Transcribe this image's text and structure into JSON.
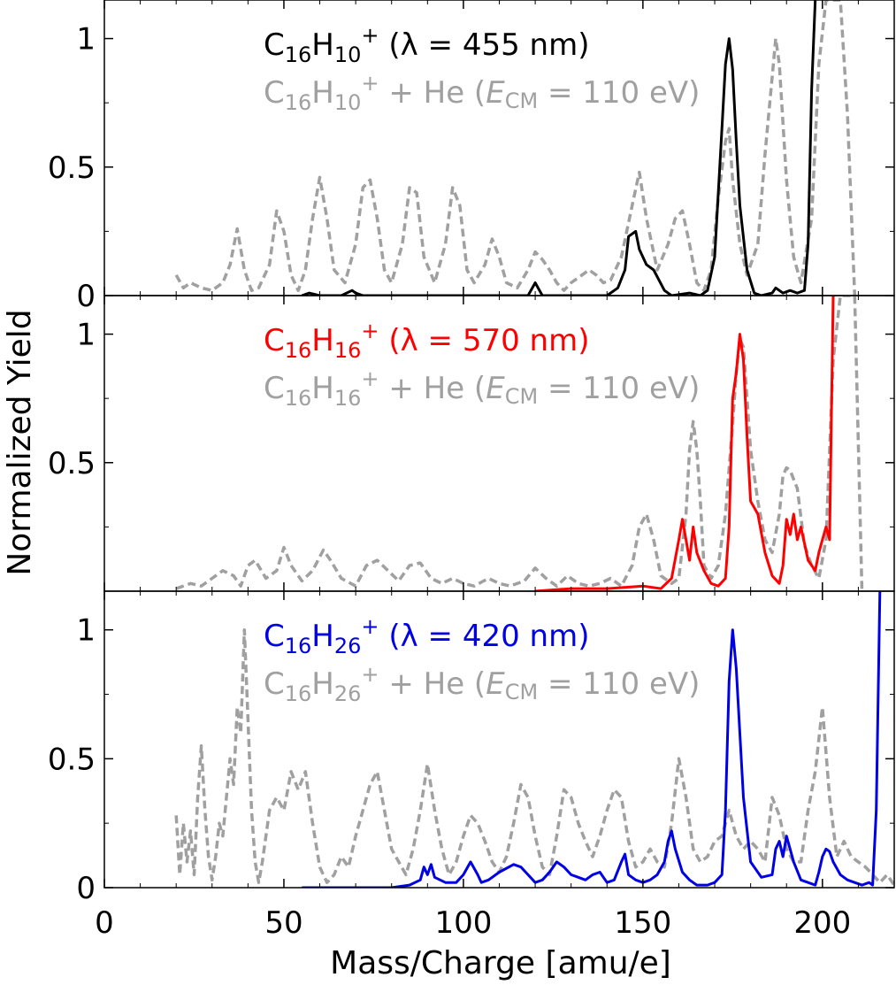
{
  "figure": {
    "ylabel": "Normalized Yield",
    "xlabel": "Mass/Charge [amu/e]",
    "xticks": [
      "0",
      "50",
      "100",
      "150",
      "200"
    ]
  },
  "chart_data": [
    {
      "type": "line",
      "panel": "top",
      "xlim": [
        0,
        220
      ],
      "ylim": [
        0,
        1.15
      ],
      "yticks": [
        "0",
        "0.5",
        "1"
      ],
      "legend": [
        {
          "formula": "C",
          "sub1": "16",
          "mid": "H",
          "sub2": "10",
          "sup": "+",
          "tail": " (λ = 455 nm)",
          "color": "#000000",
          "dashed": false
        },
        {
          "formula": "C",
          "sub1": "16",
          "mid": "H",
          "sub2": "10",
          "sup": "+",
          "tail": " + He (",
          "em": "E",
          "emsub": "CM",
          "tail2": " = 110 eV)",
          "color": "#a0a0a0",
          "dashed": true
        }
      ],
      "series": [
        {
          "name": "C16H10+ (455 nm)",
          "color": "#000000",
          "dashed": false,
          "x": [
            55,
            57,
            60,
            66,
            69,
            70,
            72,
            90,
            118,
            120,
            122,
            140,
            143,
            145,
            146,
            148,
            149,
            151,
            153,
            156,
            158,
            163,
            166,
            168,
            170,
            172,
            173,
            174,
            175,
            176,
            177,
            179,
            181,
            183,
            186,
            187,
            189,
            191,
            193,
            195,
            196,
            197,
            198
          ],
          "y": [
            0,
            0.01,
            0,
            0,
            0.02,
            0.01,
            0,
            0,
            0,
            0.05,
            0,
            0,
            0.03,
            0.1,
            0.23,
            0.25,
            0.18,
            0.12,
            0.1,
            0.02,
            0,
            0.01,
            0,
            0.02,
            0.15,
            0.65,
            0.9,
            1.0,
            0.88,
            0.6,
            0.35,
            0.1,
            0.01,
            0,
            0.01,
            0.03,
            0.01,
            0.02,
            0.01,
            0.02,
            0.2,
            0.8,
            1.2
          ]
        },
        {
          "name": "C16H10+ + He (110 eV)",
          "color": "#a0a0a0",
          "dashed": true,
          "x": [
            20,
            22,
            24,
            27,
            30,
            33,
            35,
            37,
            39,
            41,
            43,
            46,
            48,
            50,
            52,
            54,
            56,
            58,
            60,
            62,
            64,
            67,
            70,
            72,
            74,
            76,
            78,
            80,
            83,
            85,
            87,
            89,
            92,
            95,
            97,
            99,
            101,
            103,
            106,
            108,
            110,
            112,
            115,
            118,
            120,
            122,
            124,
            126,
            128,
            130,
            133,
            135,
            137,
            139,
            141,
            144,
            147,
            149,
            151,
            154,
            157,
            159,
            161,
            163,
            165,
            167,
            169,
            171,
            173,
            174,
            175,
            177,
            179,
            182,
            184,
            186,
            187,
            188,
            190,
            192,
            194,
            197,
            199,
            201,
            203,
            205,
            207,
            209
          ],
          "y": [
            0.08,
            0.03,
            0.05,
            0.03,
            0.02,
            0.05,
            0.12,
            0.26,
            0.1,
            0.02,
            0.03,
            0.12,
            0.33,
            0.25,
            0.08,
            0.02,
            0.1,
            0.3,
            0.46,
            0.3,
            0.1,
            0.05,
            0.2,
            0.42,
            0.45,
            0.3,
            0.1,
            0.05,
            0.2,
            0.42,
            0.4,
            0.15,
            0.05,
            0.2,
            0.42,
            0.35,
            0.1,
            0.05,
            0.12,
            0.22,
            0.15,
            0.05,
            0.03,
            0.1,
            0.17,
            0.14,
            0.1,
            0.05,
            0.02,
            0.05,
            0.08,
            0.1,
            0.08,
            0.05,
            0.06,
            0.15,
            0.35,
            0.48,
            0.3,
            0.1,
            0.2,
            0.3,
            0.33,
            0.2,
            0.05,
            0.02,
            0.1,
            0.38,
            0.6,
            0.65,
            0.45,
            0.2,
            0.08,
            0.2,
            0.55,
            0.85,
            1.0,
            0.9,
            0.45,
            0.15,
            0.05,
            0.3,
            0.9,
            1.2,
            1.2,
            1.2,
            0.7,
            0.0
          ]
        }
      ]
    },
    {
      "type": "line",
      "panel": "middle",
      "xlim": [
        0,
        220
      ],
      "ylim": [
        0,
        1.15
      ],
      "yticks": [
        "0.5",
        "1"
      ],
      "legend": [
        {
          "formula": "C",
          "sub1": "16",
          "mid": "H",
          "sub2": "16",
          "sup": "+",
          "tail": " (λ =  570 nm)",
          "color": "#ff0000",
          "dashed": false
        },
        {
          "formula": "C",
          "sub1": "16",
          "mid": "H",
          "sub2": "16",
          "sup": "+",
          "tail": " + He (",
          "em": "E",
          "emsub": "CM",
          "tail2": " = 110 eV)",
          "color": "#a0a0a0",
          "dashed": true
        }
      ],
      "series": [
        {
          "name": "C16H16+ (570 nm)",
          "color": "#ff0000",
          "dashed": false,
          "x": [
            120,
            130,
            140,
            150,
            155,
            158,
            160,
            161,
            162,
            163,
            164,
            165,
            167,
            169,
            171,
            173,
            174,
            175,
            176,
            177,
            178,
            179,
            180,
            182,
            184,
            186,
            188,
            189,
            190,
            191,
            192,
            193,
            194,
            196,
            198,
            199,
            200,
            201,
            202,
            203
          ],
          "y": [
            0,
            0.01,
            0.01,
            0.02,
            0.01,
            0.05,
            0.2,
            0.28,
            0.2,
            0.12,
            0.25,
            0.15,
            0.08,
            0.03,
            0.02,
            0.05,
            0.25,
            0.75,
            0.85,
            1.0,
            0.9,
            0.6,
            0.35,
            0.3,
            0.15,
            0.06,
            0.03,
            0.1,
            0.28,
            0.22,
            0.3,
            0.2,
            0.25,
            0.12,
            0.08,
            0.15,
            0.2,
            0.25,
            0.2,
            1.2
          ]
        },
        {
          "name": "C16H16+ + He (110 eV)",
          "color": "#a0a0a0",
          "dashed": true,
          "x": [
            20,
            24,
            27,
            30,
            33,
            36,
            38,
            40,
            42,
            45,
            48,
            50,
            52,
            55,
            58,
            61,
            63,
            66,
            70,
            73,
            76,
            79,
            82,
            85,
            88,
            91,
            94,
            97,
            100,
            103,
            107,
            110,
            113,
            117,
            120,
            123,
            126,
            129,
            132,
            135,
            138,
            141,
            144,
            147,
            149,
            151,
            153,
            155,
            158,
            160,
            162,
            163,
            164,
            165,
            166,
            167,
            169,
            171,
            173,
            175,
            176,
            177,
            178,
            179,
            180,
            182,
            184,
            186,
            188,
            189,
            190,
            191,
            193,
            195,
            197,
            199,
            201,
            203,
            205,
            207,
            209,
            211
          ],
          "y": [
            0.01,
            0.03,
            0.02,
            0.05,
            0.08,
            0.06,
            0.02,
            0.1,
            0.12,
            0.05,
            0.08,
            0.17,
            0.1,
            0.04,
            0.08,
            0.16,
            0.12,
            0.05,
            0.02,
            0.1,
            0.12,
            0.08,
            0.04,
            0.1,
            0.11,
            0.05,
            0.03,
            0.05,
            0.03,
            0.02,
            0.05,
            0.03,
            0.02,
            0.04,
            0.09,
            0.05,
            0.02,
            0.06,
            0.03,
            0.02,
            0.03,
            0.05,
            0.02,
            0.1,
            0.25,
            0.3,
            0.2,
            0.06,
            0.03,
            0.05,
            0.3,
            0.55,
            0.66,
            0.55,
            0.35,
            0.1,
            0.05,
            0.1,
            0.3,
            0.65,
            0.85,
            0.98,
            0.95,
            0.75,
            0.55,
            0.35,
            0.2,
            0.15,
            0.3,
            0.45,
            0.48,
            0.47,
            0.4,
            0.18,
            0.1,
            0.05,
            0.2,
            0.9,
            1.2,
            1.2,
            1.2,
            0.0
          ]
        }
      ]
    },
    {
      "type": "line",
      "panel": "bottom",
      "xlim": [
        0,
        220
      ],
      "ylim": [
        0,
        1.15
      ],
      "yticks": [
        "0",
        "0.5",
        "1"
      ],
      "legend": [
        {
          "formula": "C",
          "sub1": "16",
          "mid": "H",
          "sub2": "26",
          "sup": "+",
          "tail": " (λ = 420 nm)",
          "color": "#0000e6",
          "dashed": false
        },
        {
          "formula": "C",
          "sub1": "16",
          "mid": "H",
          "sub2": "26",
          "sup": "+",
          "tail": " + He (",
          "em": "E",
          "emsub": "CM",
          "tail2": " = 110 eV)",
          "color": "#a0a0a0",
          "dashed": true
        }
      ],
      "series": [
        {
          "name": "C16H26+ (420 nm)",
          "color": "#0000e6",
          "dashed": false,
          "x": [
            55,
            60,
            70,
            75,
            80,
            85,
            88,
            89,
            90,
            91,
            92,
            95,
            98,
            100,
            102,
            104,
            105,
            107,
            110,
            114,
            116,
            118,
            120,
            122,
            124,
            126,
            128,
            130,
            132,
            134,
            136,
            138,
            140,
            142,
            144,
            145,
            146,
            148,
            150,
            152,
            154,
            156,
            157,
            158,
            159,
            161,
            163,
            165,
            168,
            170,
            172,
            173,
            174,
            175,
            176,
            178,
            180,
            183,
            186,
            187,
            188,
            189,
            190,
            192,
            194,
            196,
            198,
            199,
            200,
            201,
            202,
            203,
            205,
            207,
            209,
            211,
            213,
            214,
            215,
            216
          ],
          "y": [
            0,
            0,
            0,
            0,
            0,
            0.01,
            0.03,
            0.08,
            0.05,
            0.09,
            0.04,
            0.02,
            0.02,
            0.05,
            0.1,
            0.05,
            0.02,
            0.03,
            0.06,
            0.09,
            0.08,
            0.05,
            0.02,
            0.03,
            0.06,
            0.1,
            0.08,
            0.05,
            0.04,
            0.03,
            0.05,
            0.06,
            0.02,
            0.03,
            0.1,
            0.13,
            0.05,
            0.03,
            0.02,
            0.03,
            0.05,
            0.1,
            0.18,
            0.22,
            0.15,
            0.06,
            0.03,
            0.01,
            0.01,
            0.02,
            0.05,
            0.3,
            0.8,
            1.0,
            0.85,
            0.35,
            0.1,
            0.04,
            0.05,
            0.15,
            0.18,
            0.12,
            0.2,
            0.1,
            0.03,
            0.02,
            0.01,
            0.06,
            0.12,
            0.15,
            0.14,
            0.1,
            0.05,
            0.03,
            0.02,
            0.01,
            0.02,
            0.01,
            0.3,
            1.2
          ]
        },
        {
          "name": "C16H26+ + He (110 eV)",
          "color": "#a0a0a0",
          "dashed": true,
          "x": [
            20,
            21,
            22,
            23,
            24,
            25,
            26,
            27,
            28,
            29,
            30,
            31,
            32,
            33,
            34,
            35,
            36,
            37,
            38,
            39,
            40,
            41,
            42,
            43,
            44,
            46,
            48,
            50,
            52,
            54,
            56,
            58,
            60,
            62,
            64,
            66,
            68,
            70,
            72,
            74,
            76,
            78,
            80,
            82,
            84,
            86,
            88,
            90,
            92,
            94,
            96,
            98,
            100,
            102,
            104,
            106,
            108,
            110,
            112,
            114,
            116,
            118,
            120,
            122,
            124,
            126,
            128,
            130,
            132,
            134,
            136,
            138,
            140,
            142,
            144,
            146,
            148,
            150,
            152,
            154,
            156,
            158,
            160,
            162,
            164,
            166,
            168,
            170,
            172,
            174,
            176,
            178,
            180,
            182,
            184,
            186,
            188,
            190,
            192,
            194,
            196,
            198,
            200,
            202,
            204,
            206,
            208,
            210,
            212,
            214,
            216,
            218,
            220
          ],
          "y": [
            0.28,
            0.05,
            0.25,
            0.1,
            0.22,
            0.05,
            0.35,
            0.55,
            0.3,
            0.12,
            0.03,
            0.12,
            0.25,
            0.2,
            0.35,
            0.5,
            0.4,
            0.7,
            0.6,
            1.0,
            0.65,
            0.3,
            0.1,
            0.02,
            0.1,
            0.3,
            0.35,
            0.3,
            0.45,
            0.38,
            0.45,
            0.25,
            0.08,
            0.02,
            0.05,
            0.12,
            0.08,
            0.2,
            0.3,
            0.4,
            0.45,
            0.3,
            0.15,
            0.1,
            0.05,
            0.15,
            0.3,
            0.48,
            0.3,
            0.15,
            0.05,
            0.1,
            0.2,
            0.28,
            0.25,
            0.18,
            0.1,
            0.06,
            0.12,
            0.25,
            0.4,
            0.35,
            0.2,
            0.08,
            0.05,
            0.2,
            0.38,
            0.35,
            0.25,
            0.18,
            0.12,
            0.2,
            0.3,
            0.38,
            0.35,
            0.18,
            0.08,
            0.1,
            0.15,
            0.1,
            0.08,
            0.25,
            0.5,
            0.35,
            0.15,
            0.1,
            0.12,
            0.18,
            0.2,
            0.3,
            0.2,
            0.15,
            0.18,
            0.15,
            0.1,
            0.35,
            0.28,
            0.15,
            0.1,
            0.1,
            0.3,
            0.45,
            0.7,
            0.35,
            0.12,
            0.18,
            0.12,
            0.1,
            0.08,
            0.05,
            0.02,
            0.05,
            0.01
          ]
        }
      ]
    }
  ]
}
